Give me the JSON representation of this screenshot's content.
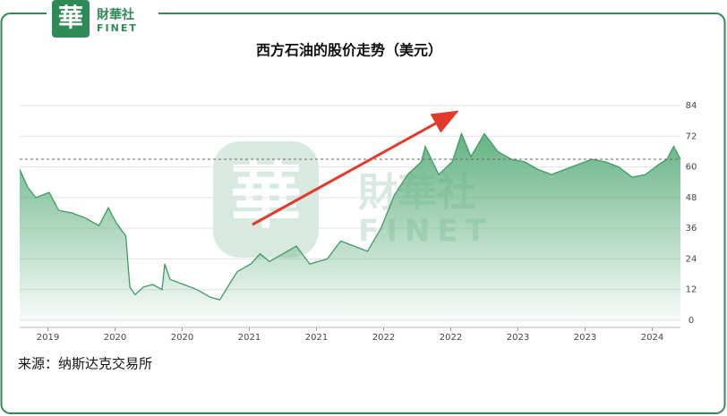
{
  "logo": {
    "mark": "華",
    "name": "財華社",
    "name_en": "FINET"
  },
  "source": "来源：纳斯达克交易所",
  "chart_data": {
    "type": "area",
    "title": "西方石油的股价走势（美元）",
    "x": [
      2019.29,
      2019.35,
      2019.41,
      2019.51,
      2019.58,
      2019.68,
      2019.78,
      2019.88,
      2019.95,
      2020.01,
      2020.08,
      2020.11,
      2020.15,
      2020.21,
      2020.28,
      2020.35,
      2020.37,
      2020.41,
      2020.51,
      2020.61,
      2020.71,
      2020.78,
      2020.85,
      2020.91,
      2021.01,
      2021.08,
      2021.15,
      2021.25,
      2021.35,
      2021.45,
      2021.58,
      2021.68,
      2021.78,
      2021.88,
      2021.98,
      2022.08,
      2022.18,
      2022.28,
      2022.31,
      2022.41,
      2022.51,
      2022.58,
      2022.65,
      2022.75,
      2022.85,
      2022.95,
      2023.05,
      2023.15,
      2023.25,
      2023.35,
      2023.45,
      2023.55,
      2023.65,
      2023.75,
      2023.85,
      2023.95,
      2024.05,
      2024.11,
      2024.16,
      2024.21
    ],
    "values": [
      59,
      52,
      48,
      50,
      43,
      42,
      40,
      37,
      44,
      38,
      33,
      13,
      10,
      13,
      14,
      12,
      22,
      16,
      14,
      12,
      9,
      8,
      14,
      19,
      22,
      26,
      23,
      26,
      29,
      22,
      24,
      31,
      29,
      27,
      36,
      49,
      57,
      62,
      68,
      57,
      62,
      73,
      64,
      73,
      66,
      63,
      62,
      59,
      57,
      59,
      61,
      63,
      62,
      60,
      56,
      57,
      61,
      63,
      68,
      63
    ],
    "color": "#3f9b63",
    "xlim": [
      2019.29,
      2024.21
    ],
    "xticks": [
      {
        "value": 2019.5,
        "label": "2019"
      },
      {
        "value": 2020.0,
        "label": "2020"
      },
      {
        "value": 2020.5,
        "label": "2020"
      },
      {
        "value": 2021.0,
        "label": "2021"
      },
      {
        "value": 2021.5,
        "label": "2021"
      },
      {
        "value": 2022.0,
        "label": "2022"
      },
      {
        "value": 2022.5,
        "label": "2022"
      },
      {
        "value": 2023.0,
        "label": "2023"
      },
      {
        "value": 2023.5,
        "label": "2023"
      },
      {
        "value": 2024.0,
        "label": "2024"
      }
    ],
    "ylim": [
      0,
      84
    ],
    "yticks": [
      0,
      12,
      24,
      36,
      48,
      60,
      72,
      84
    ],
    "grid": true,
    "reference_line": 63
  }
}
